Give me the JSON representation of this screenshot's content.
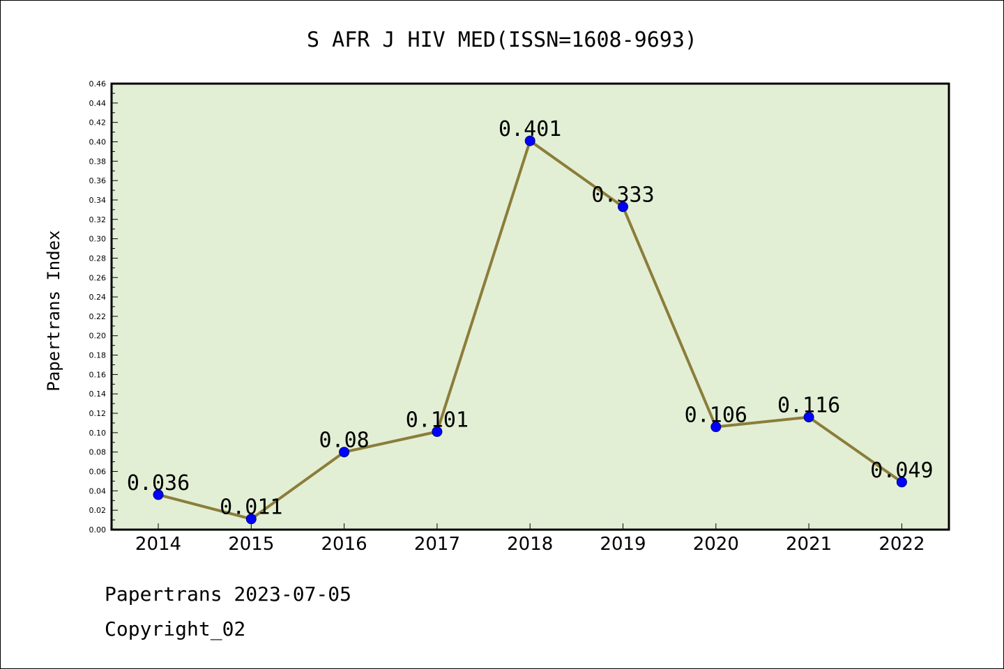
{
  "chart_data": {
    "type": "line",
    "title": "S AFR J HIV MED(ISSN=1608-9693)",
    "xlabel": "",
    "ylabel": "Papertrans Index",
    "categories": [
      "2014",
      "2015",
      "2016",
      "2017",
      "2018",
      "2019",
      "2020",
      "2021",
      "2022"
    ],
    "series": [
      {
        "values": [
          0.036,
          0.011,
          0.08,
          0.101,
          0.401,
          0.333,
          0.106,
          0.116,
          0.049
        ],
        "labels": [
          "0.036",
          "0.011",
          "0.08",
          "0.101",
          "0.401",
          "0.333",
          "0.106",
          "0.116",
          "0.049"
        ]
      }
    ],
    "ylim": [
      0,
      0.46
    ],
    "yticks": [
      "0.00",
      "0.02",
      "0.04",
      "0.06",
      "0.08",
      "0.10",
      "0.12",
      "0.14",
      "0.16",
      "0.18",
      "0.20",
      "0.22",
      "0.24",
      "0.26",
      "0.28",
      "0.30",
      "0.32",
      "0.34",
      "0.36",
      "0.38",
      "0.40",
      "0.42",
      "0.44",
      "0.46"
    ],
    "grid": false,
    "legend": "none",
    "colors": {
      "plot_background": "#e2efd5",
      "line": "#8b7d3a",
      "marker": "#0000ff"
    }
  },
  "footer": {
    "line1": "Papertrans 2023-07-05",
    "line2": "Copyright_02"
  }
}
